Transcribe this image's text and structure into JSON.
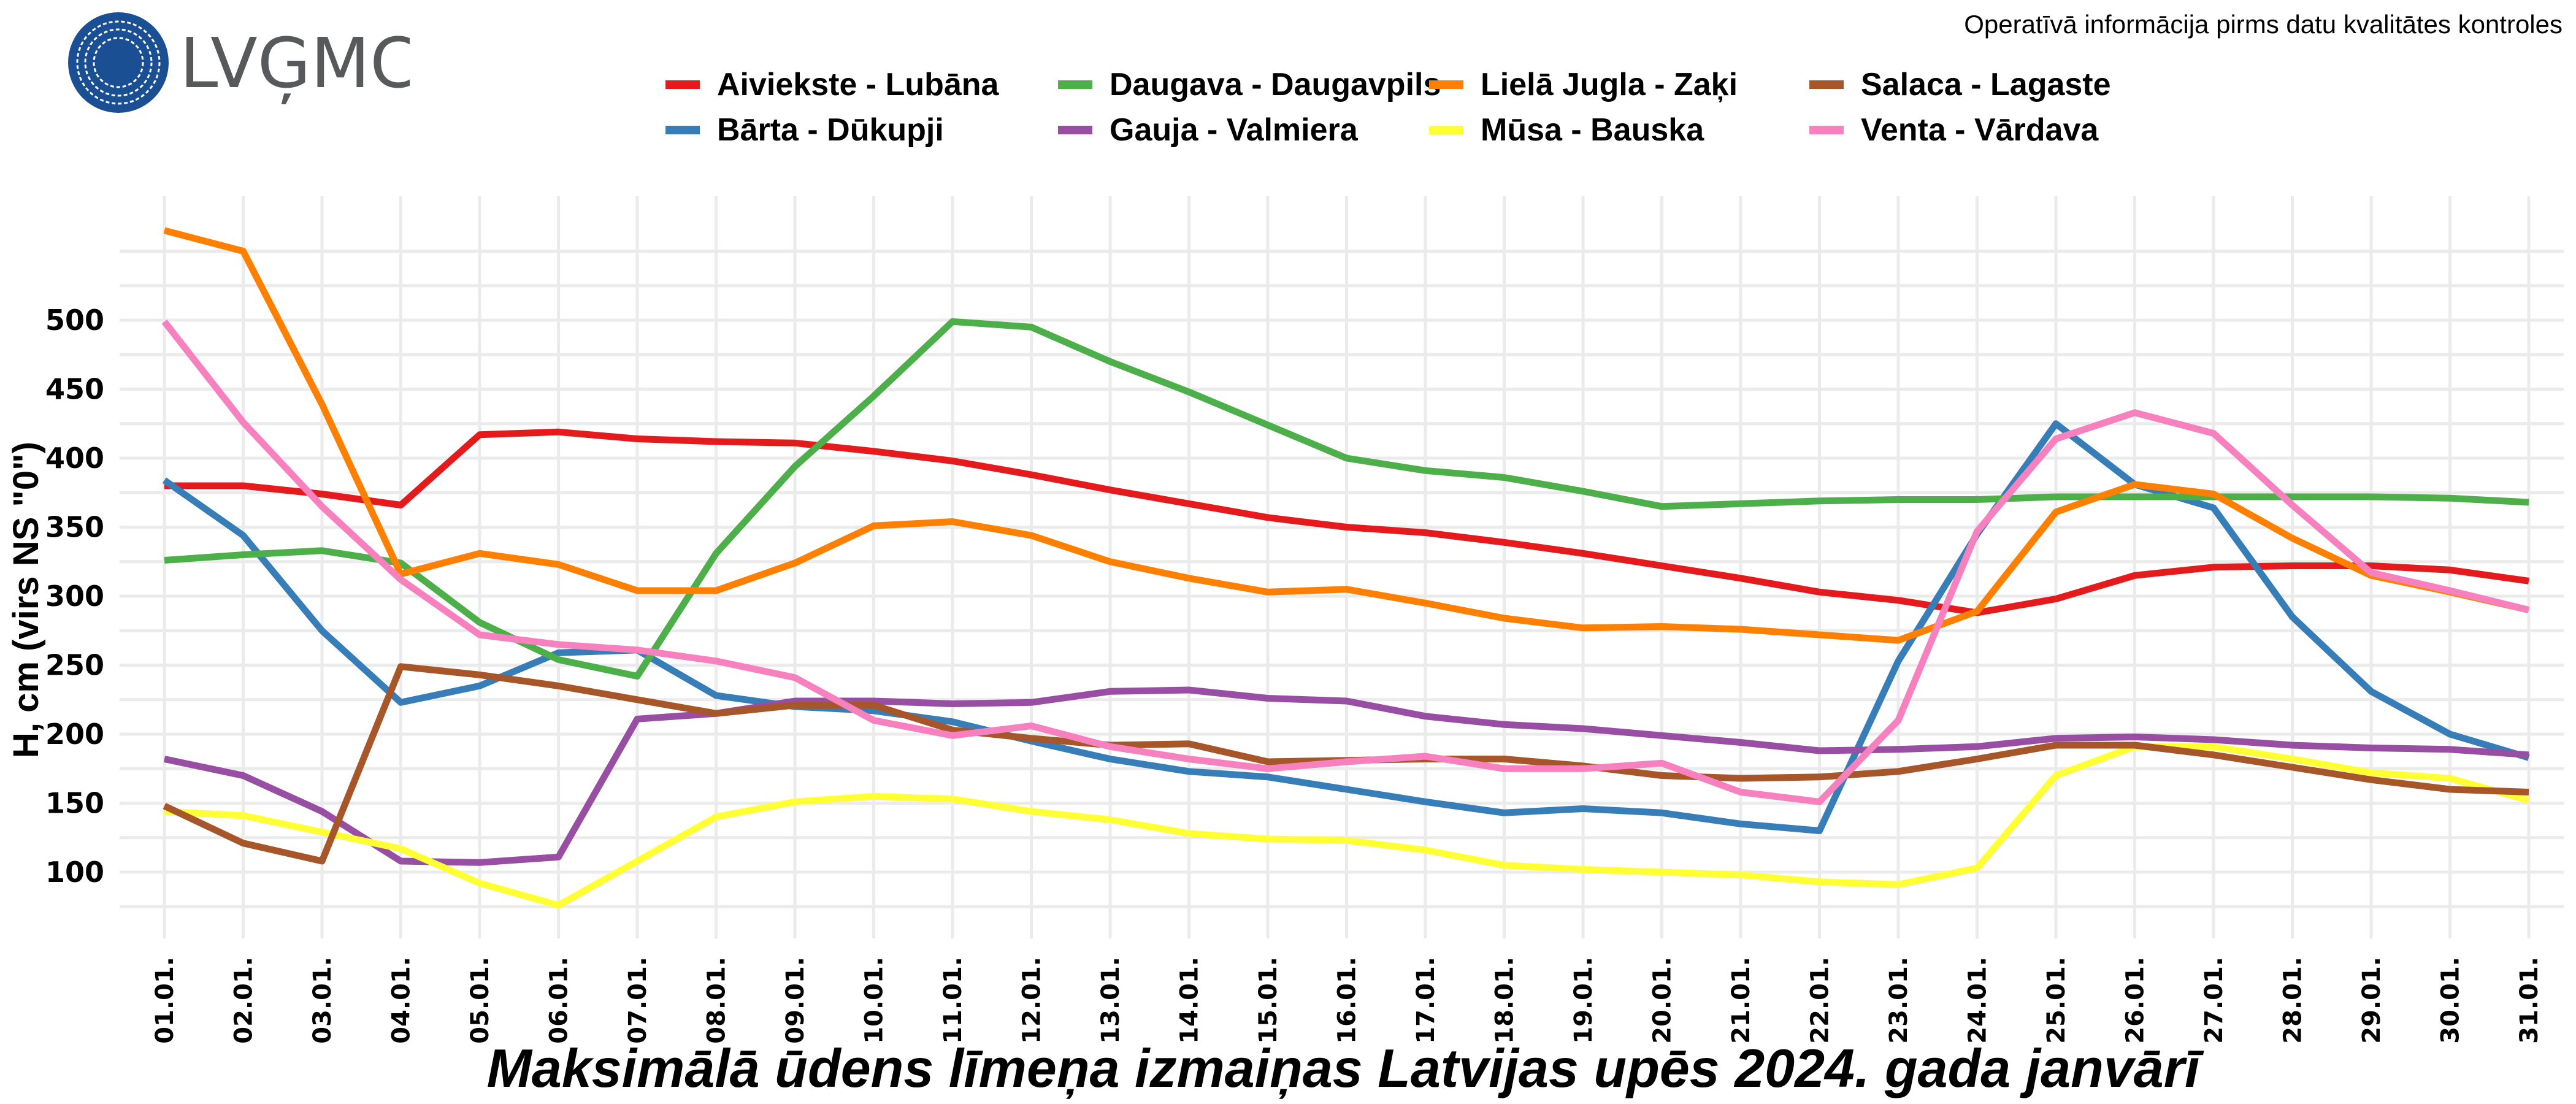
{
  "logo": {
    "text": "LVĢMC",
    "brand_color": "#1b4f93",
    "text_color": "#58595b"
  },
  "notice": "Operatīvā informācija pirms datu kvalitātes kontroles",
  "chart_data": {
    "type": "line",
    "title": "Maksimālā ūdens līmeņa izmaiņas Latvijas upēs 2024. gada janvārī",
    "xlabel": "",
    "ylabel": "H, cm (virs NS \"0\")",
    "ylim": [
      53,
      590
    ],
    "yticks": [
      100,
      150,
      200,
      250,
      300,
      350,
      400,
      450,
      500
    ],
    "ygrid_minor": [
      75,
      125,
      175,
      225,
      275,
      325,
      375,
      425,
      475,
      525,
      550
    ],
    "grid": true,
    "legend_position": "top",
    "x": [
      "01.01.",
      "02.01.",
      "03.01.",
      "04.01.",
      "05.01.",
      "06.01.",
      "07.01.",
      "08.01.",
      "09.01.",
      "10.01.",
      "11.01.",
      "12.01.",
      "13.01.",
      "14.01.",
      "15.01.",
      "16.01.",
      "17.01.",
      "18.01.",
      "19.01.",
      "20.01.",
      "21.01.",
      "22.01.",
      "23.01.",
      "24.01.",
      "25.01.",
      "26.01.",
      "27.01.",
      "28.01.",
      "29.01.",
      "30.01.",
      "31.01."
    ],
    "series": [
      {
        "name": "Aiviekste - Lubāna",
        "color": "#e41a1c",
        "values": [
          380,
          380,
          374,
          366,
          417,
          419,
          414,
          412,
          411,
          405,
          398,
          388,
          377,
          367,
          357,
          350,
          346,
          339,
          331,
          322,
          313,
          303,
          297,
          288,
          298,
          315,
          321,
          322,
          322,
          319,
          311
        ]
      },
      {
        "name": "Bārta - Dūkupji",
        "color": "#377eb8",
        "values": [
          384,
          344,
          275,
          223,
          235,
          259,
          261,
          228,
          220,
          217,
          209,
          195,
          182,
          173,
          169,
          160,
          151,
          143,
          146,
          143,
          135,
          130,
          253,
          345,
          425,
          381,
          364,
          285,
          231,
          200,
          183
        ]
      },
      {
        "name": "Daugava - Daugavpils",
        "color": "#4daf4a",
        "values": [
          326,
          330,
          333,
          324,
          281,
          254,
          242,
          331,
          394,
          445,
          499,
          495,
          470,
          448,
          424,
          400,
          391,
          386,
          376,
          365,
          367,
          369,
          370,
          370,
          372,
          372,
          372,
          372,
          372,
          371,
          368
        ]
      },
      {
        "name": "Gauja - Valmiera",
        "color": "#984ea3",
        "values": [
          182,
          170,
          144,
          108,
          107,
          111,
          211,
          215,
          224,
          224,
          222,
          223,
          231,
          232,
          226,
          224,
          213,
          207,
          204,
          199,
          194,
          188,
          189,
          191,
          197,
          198,
          196,
          192,
          190,
          189,
          185
        ]
      },
      {
        "name": "Lielā Jugla - Zaķi",
        "color": "#ff7f00",
        "values": [
          565,
          550,
          439,
          316,
          331,
          323,
          304,
          304,
          324,
          351,
          354,
          344,
          325,
          313,
          303,
          305,
          295,
          284,
          277,
          278,
          276,
          272,
          268,
          289,
          361,
          381,
          374,
          342,
          315,
          303,
          290
        ]
      },
      {
        "name": "Mūsa - Bauska",
        "color": "#ffff33",
        "values": [
          144,
          141,
          129,
          117,
          92,
          76,
          108,
          140,
          151,
          155,
          153,
          144,
          138,
          128,
          124,
          123,
          116,
          105,
          102,
          100,
          98,
          93,
          91,
          103,
          170,
          191,
          191,
          182,
          172,
          168,
          152
        ]
      },
      {
        "name": "Salaca - Lagaste",
        "color": "#a65628",
        "values": [
          148,
          121,
          108,
          249,
          243,
          235,
          225,
          215,
          221,
          221,
          203,
          197,
          192,
          193,
          180,
          181,
          182,
          182,
          177,
          170,
          168,
          169,
          173,
          182,
          192,
          192,
          185,
          176,
          167,
          160,
          158
        ]
      },
      {
        "name": "Venta - Vārdava",
        "color": "#f781bf",
        "values": [
          499,
          426,
          365,
          312,
          272,
          265,
          261,
          253,
          241,
          210,
          199,
          206,
          191,
          182,
          175,
          180,
          184,
          175,
          175,
          179,
          158,
          151,
          210,
          347,
          414,
          433,
          418,
          366,
          317,
          304,
          290
        ]
      }
    ]
  }
}
